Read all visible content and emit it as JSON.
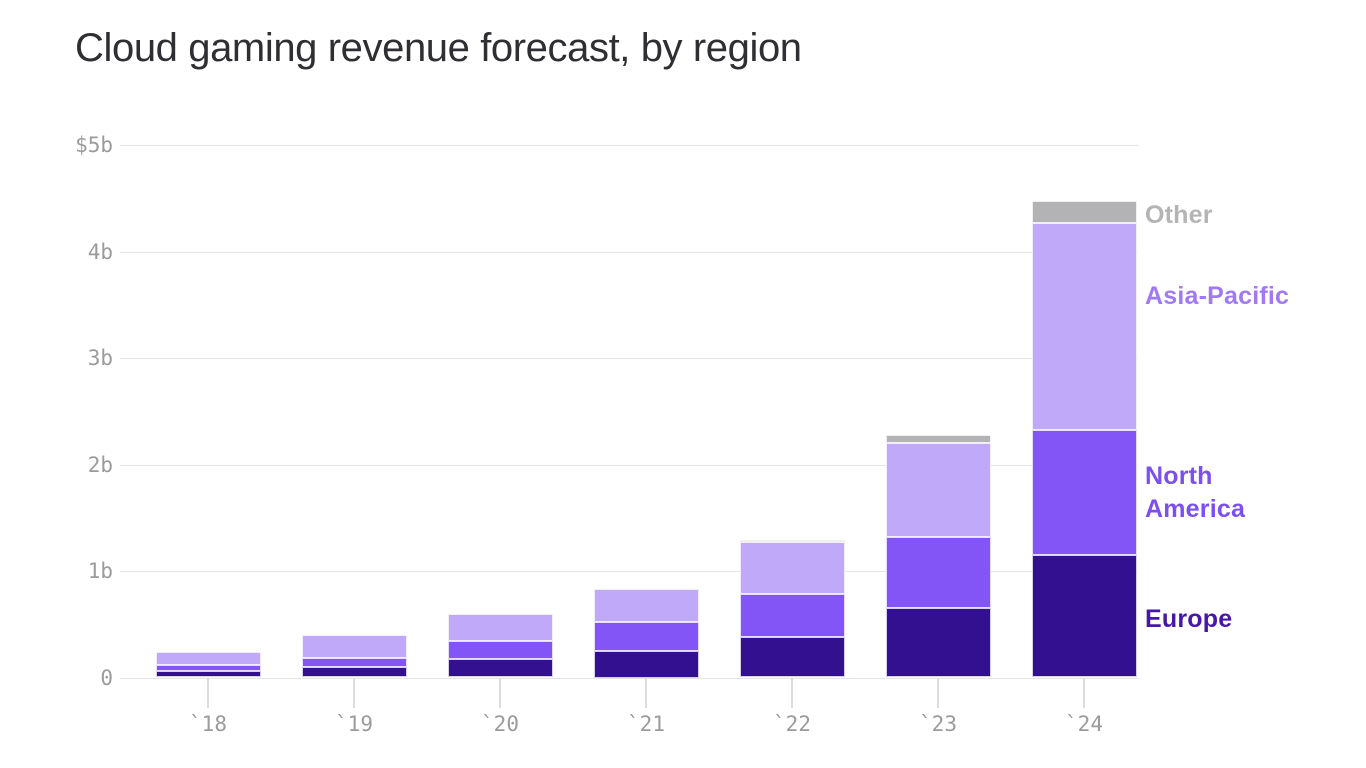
{
  "chart_data": {
    "type": "bar",
    "stacked": true,
    "title": "Cloud gaming revenue forecast, by region",
    "unit": "billions of dollars",
    "categories": [
      "`18",
      "`19",
      "`20",
      "`21",
      "`22",
      "`23",
      "`24"
    ],
    "ylim": [
      0,
      5
    ],
    "y_tick_labels": [
      "$5b",
      "4b",
      "3b",
      "2b",
      "1b",
      "0"
    ],
    "grid": "horizontal",
    "legend_position": "right",
    "series": [
      {
        "name": "Europe",
        "color": "#331090",
        "legend_color": "#4517ab",
        "values": [
          0.06,
          0.1,
          0.17,
          0.25,
          0.38,
          0.65,
          1.15
        ]
      },
      {
        "name": "North America",
        "color": "#8355f7",
        "legend_color": "#7c4ff2",
        "values": [
          0.06,
          0.08,
          0.17,
          0.27,
          0.4,
          0.67,
          1.17
        ]
      },
      {
        "name": "Asia-Pacific",
        "color": "#c0a9f8",
        "legend_color": "#a07af5",
        "values": [
          0.12,
          0.22,
          0.26,
          0.31,
          0.49,
          0.88,
          1.95
        ]
      },
      {
        "name": "Other",
        "color": "#b3b2b4",
        "legend_color": "#b4b4b4",
        "values": [
          0,
          0,
          0,
          0,
          0.02,
          0.08,
          0.2
        ]
      }
    ]
  }
}
